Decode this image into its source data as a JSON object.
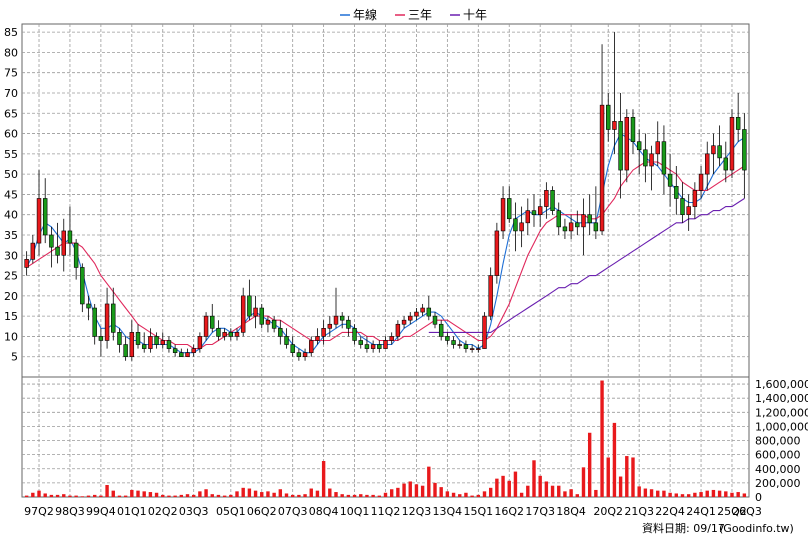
{
  "chart_data": {
    "type": "candlestick",
    "legend": {
      "placement": "top-center",
      "items": [
        {
          "label": "年線",
          "color": "#1f6fd6"
        },
        {
          "label": "三年",
          "color": "#e0285c"
        },
        {
          "label": "十年",
          "color": "#6a1fb0"
        }
      ]
    },
    "price_axis": {
      "ylim": [
        0,
        87
      ],
      "ticks": [
        5,
        10,
        15,
        20,
        25,
        30,
        35,
        40,
        45,
        50,
        55,
        60,
        65,
        70,
        75,
        80,
        85
      ],
      "tick_labels": [
        "5",
        "10",
        "15",
        "20",
        "25",
        "30",
        "35",
        "40",
        "45",
        "50",
        "55",
        "60",
        "65",
        "70",
        "75",
        "80",
        "85"
      ]
    },
    "volume_axis": {
      "ylim": [
        0,
        1700000
      ],
      "ticks": [
        0,
        200000,
        400000,
        600000,
        800000,
        1000000,
        1200000,
        1400000,
        1600000
      ],
      "tick_labels": [
        "0",
        "200,000",
        "400,000",
        "600,000",
        "800,000",
        "1,000,000",
        "1,200,000",
        "1,400,000",
        "1,600,000"
      ]
    },
    "x_axis": {
      "count": 117,
      "labels": [
        {
          "i": 2,
          "text": "97Q2"
        },
        {
          "i": 7,
          "text": "98Q3"
        },
        {
          "i": 12,
          "text": "99Q4"
        },
        {
          "i": 17,
          "text": "01Q1"
        },
        {
          "i": 22,
          "text": "02Q2"
        },
        {
          "i": 27,
          "text": "03Q3"
        },
        {
          "i": 33,
          "text": "05Q1"
        },
        {
          "i": 38,
          "text": "06Q2"
        },
        {
          "i": 43,
          "text": "07Q3"
        },
        {
          "i": 48,
          "text": "08Q4"
        },
        {
          "i": 53,
          "text": "10Q1"
        },
        {
          "i": 58,
          "text": "11Q2"
        },
        {
          "i": 63,
          "text": "12Q3"
        },
        {
          "i": 68,
          "text": "13Q4"
        },
        {
          "i": 73,
          "text": "15Q1"
        },
        {
          "i": 78,
          "text": "16Q2"
        },
        {
          "i": 83,
          "text": "17Q3"
        },
        {
          "i": 88,
          "text": "18Q4"
        },
        {
          "i": 94,
          "text": "20Q2"
        },
        {
          "i": 99,
          "text": "21Q3"
        },
        {
          "i": 104,
          "text": "22Q4"
        },
        {
          "i": 109,
          "text": "24Q1"
        },
        {
          "i": 114,
          "text": "25Q2"
        },
        {
          "i": 119,
          "text": "26Q3"
        }
      ]
    },
    "candles": [
      [
        27,
        31,
        25,
        29
      ],
      [
        29,
        35,
        28,
        33
      ],
      [
        33,
        51,
        30,
        44
      ],
      [
        44,
        49,
        33,
        35
      ],
      [
        35,
        37,
        27,
        32
      ],
      [
        32,
        38,
        28,
        30
      ],
      [
        30,
        39,
        26,
        36
      ],
      [
        36,
        42,
        30,
        33
      ],
      [
        33,
        34,
        24,
        27
      ],
      [
        27,
        28,
        16,
        18
      ],
      [
        18,
        20,
        14,
        17
      ],
      [
        17,
        18,
        8,
        10
      ],
      [
        10,
        12,
        5,
        9
      ],
      [
        9,
        22,
        7,
        18
      ],
      [
        18,
        22,
        9,
        11
      ],
      [
        11,
        12,
        6,
        8
      ],
      [
        8,
        10,
        4,
        5
      ],
      [
        5,
        14,
        4,
        11
      ],
      [
        11,
        13,
        7,
        8
      ],
      [
        8,
        11,
        6,
        7
      ],
      [
        7,
        12,
        6,
        10
      ],
      [
        10,
        11,
        7,
        8
      ],
      [
        8,
        11,
        7,
        9
      ],
      [
        9,
        10,
        6,
        7
      ],
      [
        7,
        8,
        5,
        6
      ],
      [
        6,
        7,
        5,
        5
      ],
      [
        5,
        7,
        5,
        6
      ],
      [
        6,
        8,
        5,
        7
      ],
      [
        7,
        11,
        6,
        10
      ],
      [
        10,
        16,
        9,
        15
      ],
      [
        15,
        18,
        11,
        12
      ],
      [
        12,
        14,
        9,
        10
      ],
      [
        10,
        12,
        9,
        11
      ],
      [
        11,
        12,
        9,
        10
      ],
      [
        10,
        12,
        9,
        11
      ],
      [
        11,
        22,
        10,
        20
      ],
      [
        20,
        24,
        14,
        15
      ],
      [
        15,
        20,
        12,
        17
      ],
      [
        17,
        18,
        12,
        13
      ],
      [
        13,
        15,
        11,
        14
      ],
      [
        14,
        15,
        11,
        12
      ],
      [
        12,
        14,
        8,
        10
      ],
      [
        10,
        12,
        7,
        8
      ],
      [
        8,
        10,
        5,
        6
      ],
      [
        6,
        7,
        4,
        5
      ],
      [
        5,
        7,
        4,
        6
      ],
      [
        6,
        10,
        5,
        9
      ],
      [
        9,
        12,
        8,
        10
      ],
      [
        10,
        14,
        8,
        12
      ],
      [
        12,
        15,
        10,
        13
      ],
      [
        13,
        22,
        12,
        15
      ],
      [
        15,
        16,
        12,
        14
      ],
      [
        14,
        15,
        10,
        12
      ],
      [
        12,
        13,
        8,
        9
      ],
      [
        9,
        10,
        7,
        8
      ],
      [
        8,
        10,
        6,
        7
      ],
      [
        7,
        9,
        6,
        8
      ],
      [
        8,
        9,
        6,
        7
      ],
      [
        7,
        10,
        7,
        9
      ],
      [
        9,
        11,
        8,
        10
      ],
      [
        10,
        14,
        9,
        13
      ],
      [
        13,
        15,
        12,
        14
      ],
      [
        14,
        16,
        13,
        15
      ],
      [
        15,
        17,
        14,
        16
      ],
      [
        16,
        18,
        15,
        17
      ],
      [
        17,
        20,
        14,
        15
      ],
      [
        15,
        16,
        12,
        13
      ],
      [
        13,
        14,
        9,
        10
      ],
      [
        10,
        11,
        8,
        9
      ],
      [
        9,
        10,
        7,
        8
      ],
      [
        8,
        9,
        7,
        8
      ],
      [
        8,
        9,
        6,
        7
      ],
      [
        7,
        8,
        6,
        7
      ],
      [
        7,
        8,
        6,
        7
      ],
      [
        7,
        16,
        7,
        15
      ],
      [
        15,
        27,
        14,
        25
      ],
      [
        25,
        38,
        23,
        36
      ],
      [
        36,
        47,
        34,
        44
      ],
      [
        44,
        47,
        38,
        39
      ],
      [
        39,
        43,
        31,
        36
      ],
      [
        36,
        42,
        32,
        38
      ],
      [
        38,
        44,
        35,
        41
      ],
      [
        41,
        45,
        37,
        40
      ],
      [
        40,
        44,
        37,
        42
      ],
      [
        42,
        48,
        39,
        46
      ],
      [
        46,
        47,
        40,
        41
      ],
      [
        41,
        43,
        35,
        37
      ],
      [
        37,
        39,
        34,
        36
      ],
      [
        36,
        40,
        34,
        38
      ],
      [
        38,
        41,
        35,
        37
      ],
      [
        37,
        44,
        30,
        40
      ],
      [
        40,
        45,
        35,
        38
      ],
      [
        38,
        47,
        34,
        36
      ],
      [
        36,
        82,
        35,
        67
      ],
      [
        67,
        70,
        58,
        61
      ],
      [
        61,
        85,
        55,
        63
      ],
      [
        63,
        70,
        44,
        51
      ],
      [
        51,
        66,
        48,
        64
      ],
      [
        64,
        66,
        55,
        58
      ],
      [
        58,
        61,
        50,
        56
      ],
      [
        56,
        60,
        48,
        52
      ],
      [
        52,
        57,
        46,
        55
      ],
      [
        55,
        63,
        52,
        58
      ],
      [
        58,
        62,
        45,
        50
      ],
      [
        50,
        55,
        42,
        47
      ],
      [
        47,
        52,
        40,
        44
      ],
      [
        44,
        48,
        38,
        40
      ],
      [
        40,
        45,
        36,
        42
      ],
      [
        42,
        48,
        39,
        46
      ],
      [
        46,
        52,
        44,
        50
      ],
      [
        50,
        58,
        46,
        55
      ],
      [
        55,
        60,
        50,
        57
      ],
      [
        57,
        62,
        52,
        54
      ],
      [
        54,
        58,
        48,
        51
      ],
      [
        51,
        66,
        49,
        64
      ],
      [
        64,
        70,
        58,
        61
      ],
      [
        61,
        65,
        44,
        51
      ]
    ],
    "volumes": [
      20000,
      60000,
      90000,
      50000,
      30000,
      30000,
      40000,
      20000,
      20000,
      10000,
      20000,
      30000,
      20000,
      170000,
      90000,
      20000,
      20000,
      100000,
      90000,
      80000,
      70000,
      60000,
      30000,
      20000,
      20000,
      30000,
      40000,
      30000,
      80000,
      110000,
      40000,
      30000,
      20000,
      30000,
      80000,
      130000,
      120000,
      90000,
      70000,
      80000,
      60000,
      110000,
      50000,
      30000,
      30000,
      40000,
      120000,
      90000,
      510000,
      120000,
      70000,
      40000,
      30000,
      30000,
      40000,
      30000,
      30000,
      20000,
      60000,
      110000,
      130000,
      190000,
      220000,
      180000,
      160000,
      430000,
      200000,
      140000,
      80000,
      60000,
      40000,
      60000,
      20000,
      30000,
      80000,
      130000,
      260000,
      300000,
      230000,
      360000,
      60000,
      160000,
      520000,
      300000,
      220000,
      160000,
      160000,
      80000,
      110000,
      40000,
      420000,
      910000,
      100000,
      1650000,
      560000,
      1050000,
      290000,
      580000,
      560000,
      150000,
      120000,
      110000,
      90000,
      90000,
      60000,
      50000,
      40000,
      40000,
      60000,
      70000,
      90000,
      100000,
      90000,
      80000,
      60000,
      70000,
      50000
    ],
    "series": [
      {
        "name": "年線",
        "color": "#1f6fd6",
        "values": [
          27,
          30,
          35,
          38,
          37,
          35,
          33,
          34,
          31,
          26,
          20,
          15,
          12,
          12,
          13,
          12,
          10,
          9,
          9,
          8,
          8,
          8,
          8,
          8,
          7,
          6,
          6,
          6,
          7,
          9,
          11,
          12,
          12,
          11,
          11,
          13,
          15,
          16,
          15,
          14,
          13,
          12,
          10,
          8,
          7,
          6,
          6,
          8,
          10,
          11,
          12,
          13,
          13,
          12,
          10,
          9,
          8,
          8,
          8,
          8,
          10,
          12,
          13,
          14,
          15,
          16,
          16,
          15,
          13,
          11,
          9,
          8,
          8,
          7,
          8,
          13,
          20,
          28,
          35,
          39,
          40,
          41,
          40,
          40,
          41,
          42,
          41,
          40,
          39,
          38,
          38,
          38,
          38,
          45,
          52,
          57,
          60,
          59,
          58,
          56,
          54,
          53,
          52,
          50,
          48,
          46,
          44,
          43,
          43,
          44,
          47,
          50,
          52,
          54,
          56,
          58,
          59
        ]
      },
      {
        "name": "三年",
        "color": "#e0285c",
        "values": [
          27,
          28,
          29,
          30,
          31,
          32,
          33,
          33,
          33,
          32,
          30,
          28,
          25,
          23,
          21,
          19,
          17,
          15,
          13,
          12,
          11,
          10,
          9,
          9,
          8,
          8,
          8,
          7,
          7,
          8,
          8,
          9,
          10,
          11,
          12,
          13,
          14,
          15,
          15,
          15,
          14,
          14,
          13,
          12,
          11,
          10,
          9,
          9,
          9,
          9,
          10,
          11,
          11,
          11,
          11,
          10,
          10,
          9,
          9,
          9,
          9,
          10,
          10,
          11,
          12,
          13,
          14,
          14,
          14,
          13,
          12,
          11,
          10,
          9,
          9,
          10,
          12,
          15,
          18,
          22,
          26,
          30,
          33,
          36,
          38,
          39,
          40,
          40,
          40,
          40,
          40,
          39,
          39,
          40,
          42,
          44,
          47,
          49,
          51,
          52,
          53,
          53,
          53,
          52,
          51,
          50,
          48,
          47,
          46,
          46,
          46,
          47,
          48,
          49,
          50,
          51,
          52
        ]
      },
      {
        "name": "十年",
        "color": "#6a1fb0",
        "values": [
          null,
          null,
          null,
          null,
          null,
          null,
          null,
          null,
          null,
          null,
          null,
          null,
          null,
          null,
          null,
          null,
          null,
          null,
          null,
          null,
          null,
          null,
          null,
          null,
          null,
          null,
          null,
          null,
          null,
          null,
          null,
          null,
          null,
          null,
          null,
          null,
          null,
          null,
          null,
          null,
          null,
          null,
          null,
          null,
          null,
          null,
          null,
          null,
          null,
          null,
          null,
          null,
          null,
          null,
          null,
          null,
          null,
          null,
          null,
          null,
          null,
          null,
          null,
          null,
          null,
          11,
          11,
          11,
          11,
          11,
          11,
          11,
          11,
          11,
          11,
          11,
          12,
          13,
          14,
          15,
          16,
          17,
          18,
          19,
          20,
          21,
          22,
          22,
          23,
          23,
          24,
          25,
          25,
          26,
          27,
          28,
          29,
          30,
          31,
          32,
          33,
          34,
          35,
          36,
          37,
          38,
          38,
          39,
          39,
          40,
          40,
          41,
          41,
          42,
          42,
          43,
          44
        ]
      }
    ]
  },
  "footer": {
    "date_label": "資料日期: 09/17",
    "source": "(Goodinfo.tw)"
  }
}
